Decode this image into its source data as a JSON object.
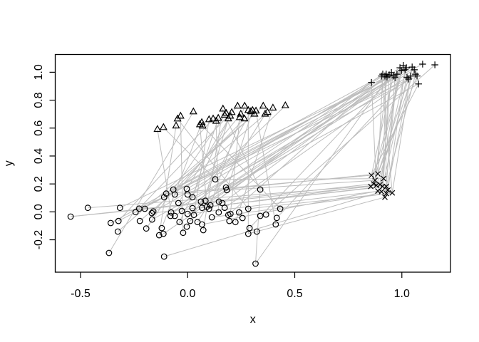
{
  "figure": {
    "background": "#ffffff",
    "colors": {
      "segment": "#bdbdbd",
      "symbol": "#000000",
      "box": "#000000",
      "text": "#000000"
    }
  },
  "chart_data": {
    "type": "scatter",
    "title": "",
    "xlabel": "x",
    "ylabel": "y",
    "xlim": [
      -0.618,
      1.227
    ],
    "ylim": [
      -0.432,
      1.127
    ],
    "grid": false,
    "legend": "none",
    "x_ticks": {
      "values": [
        -0.5,
        0.0,
        0.5,
        1.0
      ],
      "labels": [
        "-0.5",
        "0.0",
        "0.5",
        "1.0"
      ]
    },
    "y_ticks": {
      "values": [
        -0.2,
        0.0,
        0.2,
        0.4,
        0.6,
        0.8,
        1.0
      ],
      "labels": [
        "-0.2",
        "0.0",
        "0.2",
        "0.4",
        "0.6",
        "0.8",
        "1.0"
      ]
    },
    "series": [
      {
        "name": "circles",
        "symbol": "circle-open",
        "points": [
          [
            -0.546,
            -0.034
          ],
          [
            -0.466,
            0.029
          ],
          [
            -0.367,
            -0.294
          ],
          [
            -0.359,
            -0.08
          ],
          [
            -0.326,
            -0.141
          ],
          [
            -0.323,
            -0.065
          ],
          [
            -0.316,
            0.029
          ],
          [
            -0.243,
            -0.002
          ],
          [
            -0.226,
            0.023
          ],
          [
            -0.223,
            -0.065
          ],
          [
            -0.2,
            0.022
          ],
          [
            -0.193,
            -0.119
          ],
          [
            -0.167,
            -0.009
          ],
          [
            -0.16,
            0.003
          ],
          [
            -0.166,
            -0.055
          ],
          [
            -0.121,
            -0.116
          ],
          [
            -0.133,
            -0.167
          ],
          [
            -0.113,
            -0.157
          ],
          [
            -0.11,
            -0.32
          ],
          [
            -0.1,
            0.131
          ],
          [
            -0.11,
            0.105
          ],
          [
            -0.067,
            0.16
          ],
          [
            -0.06,
            0.124
          ],
          [
            -0.004,
            0.165
          ],
          [
            0.0,
            0.124
          ],
          [
            0.023,
            0.105
          ],
          [
            -0.077,
            -0.004
          ],
          [
            -0.08,
            -0.029
          ],
          [
            -0.06,
            -0.029
          ],
          [
            -0.038,
            -0.073
          ],
          [
            -0.021,
            -0.15
          ],
          [
            0.0,
            -0.014
          ],
          [
            -0.004,
            -0.106
          ],
          [
            0.012,
            -0.065
          ],
          [
            0.029,
            -0.022
          ],
          [
            0.046,
            -0.073
          ],
          [
            0.062,
            0.073
          ],
          [
            0.067,
            0.029
          ],
          [
            0.083,
            0.08
          ],
          [
            0.09,
            0.037
          ],
          [
            0.1,
            0.022
          ],
          [
            0.106,
            0.047
          ],
          [
            0.067,
            -0.09
          ],
          [
            0.073,
            -0.131
          ],
          [
            0.129,
            0.233
          ],
          [
            0.179,
            0.175
          ],
          [
            0.183,
            0.156
          ],
          [
            0.162,
            0.063
          ],
          [
            0.173,
            0.029
          ],
          [
            0.145,
            -0.004
          ],
          [
            0.19,
            -0.022
          ],
          [
            0.2,
            -0.014
          ],
          [
            0.195,
            -0.065
          ],
          [
            0.223,
            -0.073
          ],
          [
            0.283,
            0.022
          ],
          [
            0.289,
            -0.116
          ],
          [
            0.283,
            -0.157
          ],
          [
            0.317,
            -0.371
          ],
          [
            0.339,
            0.16
          ],
          [
            0.339,
            -0.029
          ],
          [
            0.366,
            -0.019
          ],
          [
            0.432,
            0.022
          ],
          [
            0.416,
            -0.043
          ],
          [
            0.411,
            -0.09
          ],
          [
            -0.043,
            0.063
          ],
          [
            0.113,
            -0.039
          ],
          [
            0.146,
            0.073
          ],
          [
            0.023,
            0.027
          ],
          [
            -0.027,
            0.007
          ],
          [
            0.24,
            -0.004
          ],
          [
            0.256,
            -0.044
          ],
          [
            0.323,
            -0.141
          ]
        ]
      },
      {
        "name": "triangles",
        "symbol": "triangle-open",
        "points": [
          [
            -0.141,
            0.59
          ],
          [
            -0.113,
            0.604
          ],
          [
            -0.054,
            0.615
          ],
          [
            -0.047,
            0.665
          ],
          [
            -0.033,
            0.685
          ],
          [
            0.027,
            0.716
          ],
          [
            0.057,
            0.624
          ],
          [
            0.066,
            0.639
          ],
          [
            0.07,
            0.614
          ],
          [
            0.1,
            0.66
          ],
          [
            0.119,
            0.665
          ],
          [
            0.133,
            0.649
          ],
          [
            0.143,
            0.67
          ],
          [
            0.165,
            0.736
          ],
          [
            0.173,
            0.692
          ],
          [
            0.18,
            0.706
          ],
          [
            0.19,
            0.666
          ],
          [
            0.199,
            0.685
          ],
          [
            0.206,
            0.711
          ],
          [
            0.233,
            0.757
          ],
          [
            0.243,
            0.675
          ],
          [
            0.248,
            0.7
          ],
          [
            0.266,
            0.757
          ],
          [
            0.265,
            0.666
          ],
          [
            0.283,
            0.726
          ],
          [
            0.295,
            0.717
          ],
          [
            0.303,
            0.726
          ],
          [
            0.312,
            0.7
          ],
          [
            0.319,
            0.722
          ],
          [
            0.353,
            0.757
          ],
          [
            0.362,
            0.7
          ],
          [
            0.373,
            0.712
          ],
          [
            0.398,
            0.743
          ],
          [
            0.456,
            0.76
          ]
        ]
      },
      {
        "name": "pluses",
        "symbol": "plus",
        "points": [
          [
            0.858,
            0.927
          ],
          [
            0.905,
            0.973
          ],
          [
            0.911,
            0.986
          ],
          [
            0.921,
            0.973
          ],
          [
            0.927,
            0.986
          ],
          [
            0.931,
            0.966
          ],
          [
            0.941,
            0.981
          ],
          [
            0.951,
            0.998
          ],
          [
            0.96,
            0.973
          ],
          [
            0.968,
            0.961
          ],
          [
            0.977,
            0.986
          ],
          [
            0.991,
            1.032
          ],
          [
            0.998,
            1.012
          ],
          [
            1.007,
            1.049
          ],
          [
            1.015,
            1.018
          ],
          [
            1.021,
            1.032
          ],
          [
            1.024,
            0.964
          ],
          [
            1.031,
            0.951
          ],
          [
            1.041,
            0.973
          ],
          [
            1.048,
            1.037
          ],
          [
            1.058,
            1.018
          ],
          [
            1.064,
            0.986
          ],
          [
            1.071,
            0.973
          ],
          [
            1.078,
            0.916
          ],
          [
            1.097,
            1.058
          ],
          [
            1.154,
            1.053
          ]
        ]
      },
      {
        "name": "crosses",
        "symbol": "cross",
        "points": [
          [
            0.858,
            0.262
          ],
          [
            0.888,
            0.272
          ],
          [
            0.915,
            0.238
          ],
          [
            0.868,
            0.201
          ],
          [
            0.881,
            0.19
          ],
          [
            0.898,
            0.195
          ],
          [
            0.91,
            0.182
          ],
          [
            0.927,
            0.182
          ],
          [
            0.935,
            0.156
          ],
          [
            0.955,
            0.136
          ],
          [
            0.888,
            0.149
          ],
          [
            0.905,
            0.144
          ],
          [
            0.921,
            0.105
          ],
          [
            0.928,
            0.131
          ],
          [
            0.855,
            0.182
          ],
          [
            0.875,
            0.226
          ]
        ]
      }
    ],
    "segments": [
      [
        "triangles",
        0,
        "circles",
        26
      ],
      [
        "triangles",
        1,
        "circles",
        44
      ],
      [
        "triangles",
        2,
        "circles",
        16
      ],
      [
        "triangles",
        3,
        "circles",
        54
      ],
      [
        "triangles",
        4,
        "circles",
        30
      ],
      [
        "triangles",
        5,
        "circles",
        2
      ],
      [
        "triangles",
        6,
        "circles",
        39
      ],
      [
        "triangles",
        7,
        "circles",
        15
      ],
      [
        "triangles",
        8,
        "circles",
        61
      ],
      [
        "triangles",
        9,
        "circles",
        34
      ],
      [
        "triangles",
        10,
        "circles",
        5
      ],
      [
        "triangles",
        11,
        "circles",
        49
      ],
      [
        "triangles",
        12,
        "circles",
        25
      ],
      [
        "triangles",
        13,
        "circles",
        43
      ],
      [
        "triangles",
        14,
        "circles",
        58
      ],
      [
        "triangles",
        15,
        "circles",
        11
      ],
      [
        "triangles",
        16,
        "circles",
        37
      ],
      [
        "triangles",
        17,
        "circles",
        64
      ],
      [
        "triangles",
        18,
        "circles",
        29
      ],
      [
        "triangles",
        19,
        "circles",
        7
      ],
      [
        "triangles",
        20,
        "circles",
        51
      ],
      [
        "triangles",
        21,
        "circles",
        22
      ],
      [
        "triangles",
        22,
        "circles",
        40
      ],
      [
        "triangles",
        23,
        "circles",
        13
      ],
      [
        "triangles",
        24,
        "circles",
        56
      ],
      [
        "triangles",
        25,
        "circles",
        32
      ],
      [
        "triangles",
        26,
        "circles",
        46
      ],
      [
        "triangles",
        27,
        "circles",
        4
      ],
      [
        "triangles",
        28,
        "circles",
        63
      ],
      [
        "triangles",
        29,
        "circles",
        19
      ],
      [
        "triangles",
        30,
        "circles",
        35
      ],
      [
        "triangles",
        31,
        "circles",
        9
      ],
      [
        "triangles",
        32,
        "circles",
        53
      ],
      [
        "triangles",
        33,
        "circles",
        27
      ],
      [
        "pluses",
        0,
        "circles",
        33
      ],
      [
        "pluses",
        1,
        "circles",
        3
      ],
      [
        "pluses",
        2,
        "circles",
        28
      ],
      [
        "pluses",
        3,
        "circles",
        50
      ],
      [
        "pluses",
        4,
        "circles",
        12
      ],
      [
        "pluses",
        5,
        "circles",
        41
      ],
      [
        "pluses",
        6,
        "circles",
        23
      ],
      [
        "pluses",
        7,
        "circles",
        57
      ],
      [
        "pluses",
        8,
        "circles",
        6
      ],
      [
        "pluses",
        9,
        "circles",
        45
      ],
      [
        "pluses",
        10,
        "circles",
        17
      ],
      [
        "pluses",
        11,
        "circles",
        38
      ],
      [
        "pluses",
        12,
        "circles",
        7
      ],
      [
        "pluses",
        13,
        "circles",
        55
      ],
      [
        "pluses",
        14,
        "circles",
        21
      ],
      [
        "pluses",
        15,
        "circles",
        47
      ],
      [
        "pluses",
        16,
        "circles",
        31
      ],
      [
        "pluses",
        17,
        "circles",
        8
      ],
      [
        "pluses",
        18,
        "circles",
        62
      ],
      [
        "pluses",
        19,
        "circles",
        24
      ],
      [
        "pluses",
        20,
        "circles",
        26
      ],
      [
        "pluses",
        21,
        "circles",
        48
      ],
      [
        "pluses",
        22,
        "circles",
        14
      ],
      [
        "pluses",
        23,
        "circles",
        36
      ],
      [
        "pluses",
        24,
        "circles",
        5
      ],
      [
        "pluses",
        25,
        "circles",
        60
      ],
      [
        "crosses",
        0,
        "circles",
        19
      ],
      [
        "crosses",
        1,
        "circles",
        22
      ],
      [
        "crosses",
        2,
        "circles",
        44
      ],
      [
        "crosses",
        3,
        "circles",
        0
      ],
      [
        "crosses",
        4,
        "circles",
        1
      ],
      [
        "crosses",
        5,
        "circles",
        37
      ],
      [
        "crosses",
        6,
        "circles",
        12
      ],
      [
        "crosses",
        7,
        "circles",
        39
      ],
      [
        "crosses",
        8,
        "circles",
        31
      ],
      [
        "crosses",
        9,
        "circles",
        65
      ],
      [
        "crosses",
        10,
        "circles",
        42
      ],
      [
        "crosses",
        11,
        "circles",
        18
      ],
      [
        "crosses",
        12,
        "circles",
        56
      ],
      [
        "crosses",
        13,
        "circles",
        54
      ],
      [
        "crosses",
        14,
        "circles",
        0
      ],
      [
        "crosses",
        15,
        "circles",
        46
      ],
      [
        "pluses",
        0,
        "crosses",
        4
      ],
      [
        "pluses",
        1,
        "crosses",
        9
      ],
      [
        "pluses",
        2,
        "crosses",
        1
      ],
      [
        "pluses",
        3,
        "crosses",
        13
      ],
      [
        "pluses",
        4,
        "crosses",
        6
      ],
      [
        "pluses",
        5,
        "crosses",
        15
      ],
      [
        "pluses",
        6,
        "crosses",
        2
      ],
      [
        "pluses",
        7,
        "crosses",
        11
      ],
      [
        "pluses",
        8,
        "crosses",
        0
      ],
      [
        "pluses",
        9,
        "crosses",
        7
      ],
      [
        "pluses",
        10,
        "crosses",
        12
      ],
      [
        "pluses",
        11,
        "crosses",
        5
      ],
      [
        "pluses",
        12,
        "crosses",
        14
      ],
      [
        "pluses",
        13,
        "crosses",
        3
      ],
      [
        "pluses",
        14,
        "crosses",
        8
      ],
      [
        "pluses",
        15,
        "crosses",
        10
      ],
      [
        "pluses",
        16,
        "crosses",
        6
      ],
      [
        "pluses",
        17,
        "crosses",
        1
      ],
      [
        "pluses",
        18,
        "crosses",
        13
      ],
      [
        "pluses",
        19,
        "crosses",
        9
      ],
      [
        "pluses",
        20,
        "crosses",
        4
      ],
      [
        "pluses",
        21,
        "crosses",
        7
      ],
      [
        "pluses",
        22,
        "crosses",
        15
      ],
      [
        "pluses",
        23,
        "crosses",
        0
      ],
      [
        "circles",
        58,
        "circles",
        57
      ]
    ]
  }
}
